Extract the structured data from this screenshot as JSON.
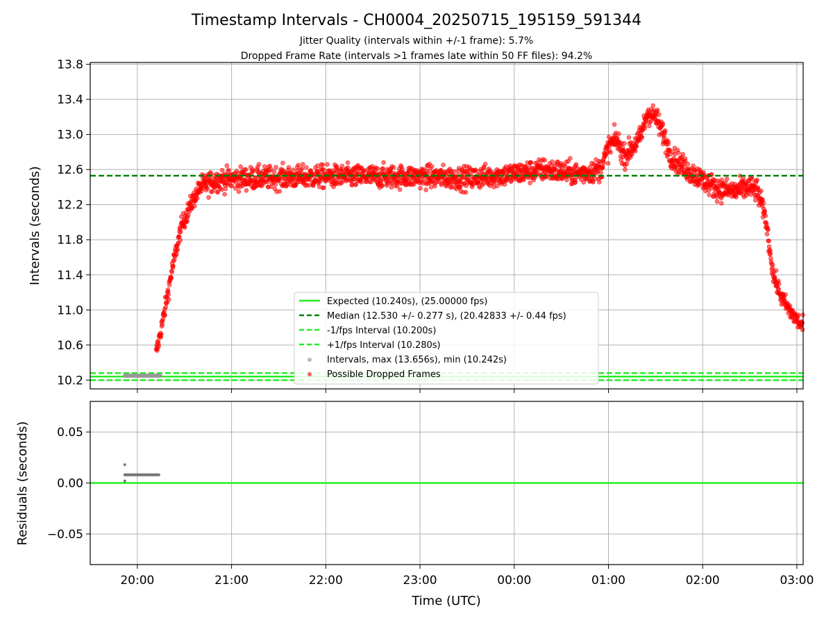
{
  "title": "Timestamp Intervals - CH0004_20250715_195159_591344",
  "subtitle_1": "Jitter Quality (intervals within +/-1 frame): 5.7%",
  "subtitle_2": "Dropped Frame Rate (intervals >1 frames late within 50 FF files): 94.2%",
  "colors": {
    "expected": "#22ee22",
    "median": "#008000",
    "fps_bounds": "#22ee22",
    "intervals": "#999999",
    "dropped": "#ff0000",
    "grid": "#b0b0b0"
  },
  "chart_data": [
    {
      "type": "scatter",
      "panel": "intervals",
      "ylabel": "Intervals (seconds)",
      "xlim": [
        "19:30",
        "03:04"
      ],
      "ylim": [
        10.1,
        13.82
      ],
      "yticks": [
        "10.2",
        "10.6",
        "11.0",
        "11.4",
        "11.8",
        "12.2",
        "12.6",
        "13.0",
        "13.4",
        "13.8"
      ],
      "grid": true,
      "legend_position": "lower-center",
      "legend": [
        "Expected (10.240s), (25.00000 fps)",
        "Median (12.530 +/- 0.277 s), (20.42833 +/- 0.44 fps)",
        "-1/fps Interval (10.200s)",
        "+1/fps Interval (10.280s)",
        "Intervals, max (13.656s), min (10.242s)",
        "Possible Dropped Frames"
      ],
      "reference_lines": {
        "expected": 10.24,
        "median": 12.53,
        "minus_one_fps": 10.2,
        "plus_one_fps": 10.28
      },
      "normal_intervals": {
        "x_start": "19:52",
        "x_end": "20:15",
        "y": 10.25,
        "outliers": [
          [
            "20:12",
            10.6
          ]
        ]
      },
      "dropped_frames_trend": [
        [
          "20:12",
          10.5
        ],
        [
          "20:17",
          10.95
        ],
        [
          "20:22",
          11.45
        ],
        [
          "20:28",
          11.95
        ],
        [
          "20:34",
          12.2
        ],
        [
          "20:40",
          12.4
        ],
        [
          "20:50",
          12.48
        ],
        [
          "21:10",
          12.5
        ],
        [
          "22:00",
          12.52
        ],
        [
          "23:00",
          12.52
        ],
        [
          "23:30",
          12.5
        ],
        [
          "00:00",
          12.55
        ],
        [
          "00:20",
          12.6
        ],
        [
          "00:40",
          12.55
        ],
        [
          "00:55",
          12.6
        ],
        [
          "01:00",
          12.85
        ],
        [
          "01:05",
          12.95
        ],
        [
          "01:10",
          12.75
        ],
        [
          "01:20",
          12.95
        ],
        [
          "01:25",
          13.25
        ],
        [
          "01:30",
          13.2
        ],
        [
          "01:35",
          13.0
        ],
        [
          "01:40",
          12.75
        ],
        [
          "01:50",
          12.6
        ],
        [
          "02:00",
          12.48
        ],
        [
          "02:10",
          12.38
        ],
        [
          "02:20",
          12.35
        ],
        [
          "02:30",
          12.4
        ],
        [
          "02:35",
          12.35
        ],
        [
          "02:40",
          12.05
        ],
        [
          "02:45",
          11.4
        ],
        [
          "02:50",
          11.15
        ],
        [
          "02:55",
          11.0
        ],
        [
          "03:04",
          10.8
        ]
      ]
    },
    {
      "type": "scatter",
      "panel": "residuals",
      "xlabel": "Time (UTC)",
      "ylabel": "Residuals (seconds)",
      "xlim": [
        "19:30",
        "03:04"
      ],
      "ylim": [
        -0.08,
        0.08
      ],
      "yticks": [
        "−0.05",
        "0.00",
        "0.05"
      ],
      "xticks": [
        "20:00",
        "21:00",
        "22:00",
        "23:00",
        "00:00",
        "01:00",
        "02:00",
        "03:00"
      ],
      "grid": true,
      "zero_line": 0,
      "residual_points": {
        "x_start": "19:52",
        "x_end": "20:14",
        "y": 0.008,
        "spikes": [
          [
            "19:52",
            0.018
          ],
          [
            "19:52",
            0.002
          ]
        ]
      }
    }
  ]
}
